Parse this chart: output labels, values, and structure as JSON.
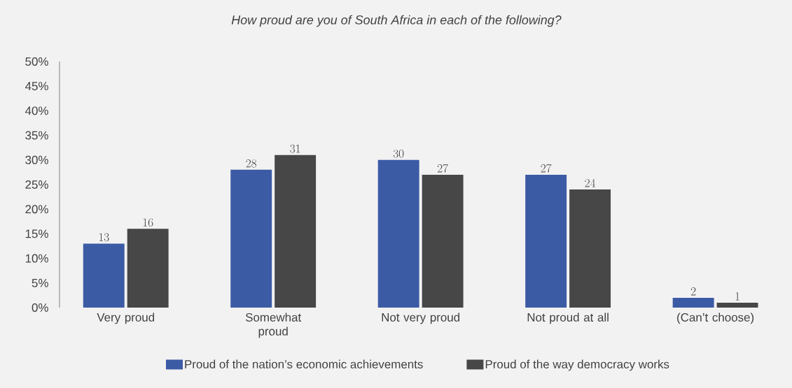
{
  "chart_data": {
    "type": "bar",
    "title": "*How proud are you of South Africa in each of the following?*",
    "categories": [
      "Very proud",
      "Somewhat proud",
      "Not very proud",
      "Not proud at all",
      "(Can’t choose)"
    ],
    "series": [
      {
        "name": "Proud of the nation’s economic achievements",
        "color": "#3c5ba5",
        "values": [
          13,
          28,
          30,
          27,
          2
        ]
      },
      {
        "name": "Proud of the way democracy works",
        "color": "#474747",
        "values": [
          16,
          31,
          27,
          24,
          1
        ]
      }
    ],
    "ylim": [
      0,
      50
    ],
    "yticks": [
      {
        "value": 0,
        "label": "0%"
      },
      {
        "value": 5,
        "label": "5%"
      },
      {
        "value": 10,
        "label": "10%"
      },
      {
        "value": 15,
        "label": "15%"
      },
      {
        "value": 20,
        "label": "20%"
      },
      {
        "value": 25,
        "label": "25%"
      },
      {
        "value": 30,
        "label": "30%"
      },
      {
        "value": 35,
        "label": "35%"
      },
      {
        "value": 40,
        "label": "40%"
      },
      {
        "value": 45,
        "label": "45%"
      },
      {
        "value": 50,
        "label": "50%"
      }
    ],
    "data_labels": true,
    "grid": false,
    "legend": "bottom"
  }
}
